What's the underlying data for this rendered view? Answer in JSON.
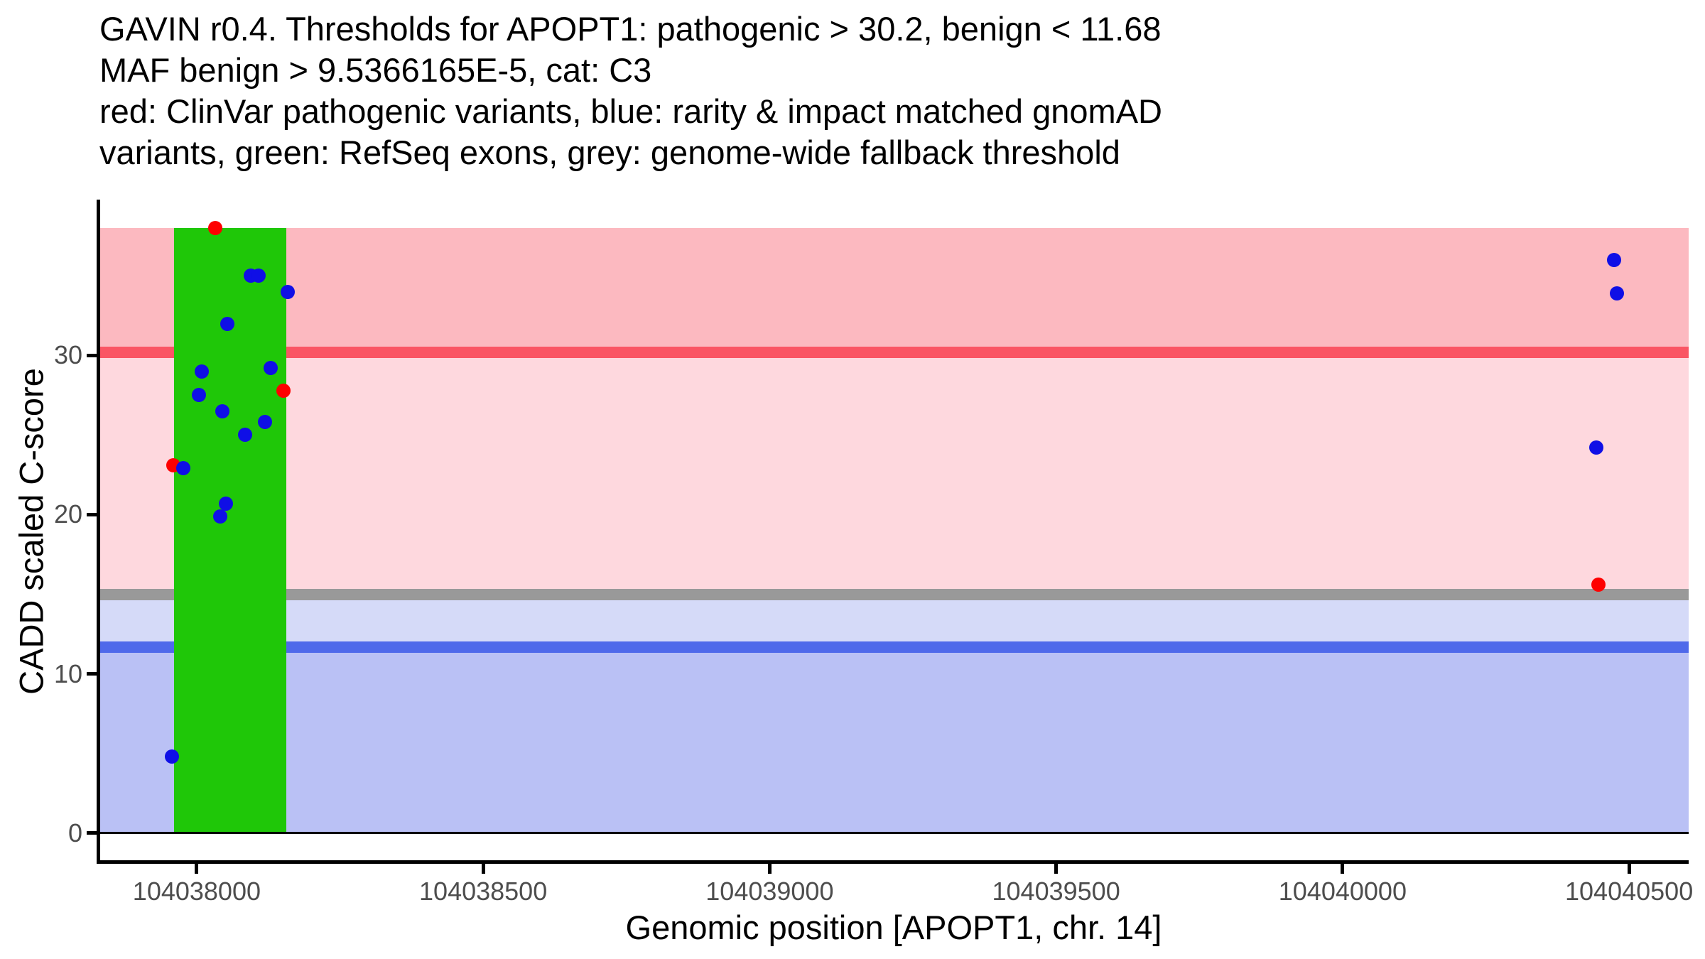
{
  "title": {
    "lines": [
      "GAVIN r0.4. Thresholds for APOPT1: pathogenic > 30.2, benign < 11.68",
      "MAF benign > 9.5366165E-5, cat: C3",
      "red: ClinVar pathogenic variants, blue: rarity & impact matched gnomAD",
      "variants, green: RefSeq exons, grey: genome-wide fallback threshold"
    ]
  },
  "chart_data": {
    "type": "scatter",
    "title": "GAVIN r0.4. Thresholds for APOPT1: pathogenic > 30.2, benign < 11.68 MAF benign > 9.5366165E-5, cat: C3 red: ClinVar pathogenic variants, blue: rarity & impact matched gnomAD variants, green: RefSeq exons, grey: genome-wide fallback threshold",
    "xlabel": "Genomic position [APOPT1, chr. 14]",
    "ylabel": "CADD scaled C-score",
    "xlim": [
      104037829,
      104040604
    ],
    "ylim": [
      -1.8,
      39.7
    ],
    "x_ticks": [
      104038000,
      104038500,
      104039000,
      104039500,
      104040000,
      104040500
    ],
    "y_ticks": [
      0,
      10,
      20,
      30
    ],
    "grid": false,
    "legend_position": "none",
    "thresholds": {
      "pathogenic_cadd": 30.2,
      "benign_cadd": 11.68,
      "genome_wide_fallback": 15,
      "maf_benign": "9.5366165E-5",
      "category": "C3"
    },
    "band_top": 38.0,
    "band_bottom": 0,
    "exon": {
      "name": "RefSeq exon",
      "start": 104037960,
      "end": 104038156
    },
    "series": [
      {
        "name": "ClinVar pathogenic variants",
        "color": "#fe0000",
        "points": [
          [
            104038032,
            38.0
          ],
          [
            104038151,
            27.8
          ],
          [
            104037959,
            23.1
          ],
          [
            104040447,
            15.6
          ]
        ]
      },
      {
        "name": "rarity & impact matched gnomAD variants",
        "color": "#0f0fe6",
        "points": [
          [
            104038094,
            35.0
          ],
          [
            104038108,
            35.0
          ],
          [
            104038159,
            34.0
          ],
          [
            104038053,
            32.0
          ],
          [
            104038129,
            29.2
          ],
          [
            104038009,
            29.0
          ],
          [
            104038004,
            27.5
          ],
          [
            104038045,
            26.5
          ],
          [
            104038119,
            25.8
          ],
          [
            104038084,
            25.0
          ],
          [
            104037976,
            22.9
          ],
          [
            104038051,
            20.7
          ],
          [
            104038041,
            19.9
          ],
          [
            104037957,
            4.8
          ],
          [
            104040474,
            36.0
          ],
          [
            104040479,
            33.9
          ],
          [
            104040443,
            24.2
          ]
        ]
      }
    ],
    "colors": {
      "band_pathogenic_dark": "#fcb9c0",
      "band_pathogenic_light": "#fed8de",
      "band_benign_light": "#d5daf8",
      "band_benign_dark": "#bac1f5",
      "pathogenic_line": "#fa5564",
      "fallback_line": "#999999",
      "benign_line": "#4f69ea",
      "exon_green": "#1fc708",
      "zero_line": "#000000",
      "axis_line": "#000000",
      "tick_label": "#4d4d4d",
      "point_red": "#fe0000",
      "point_blue": "#0f0fe6"
    }
  }
}
